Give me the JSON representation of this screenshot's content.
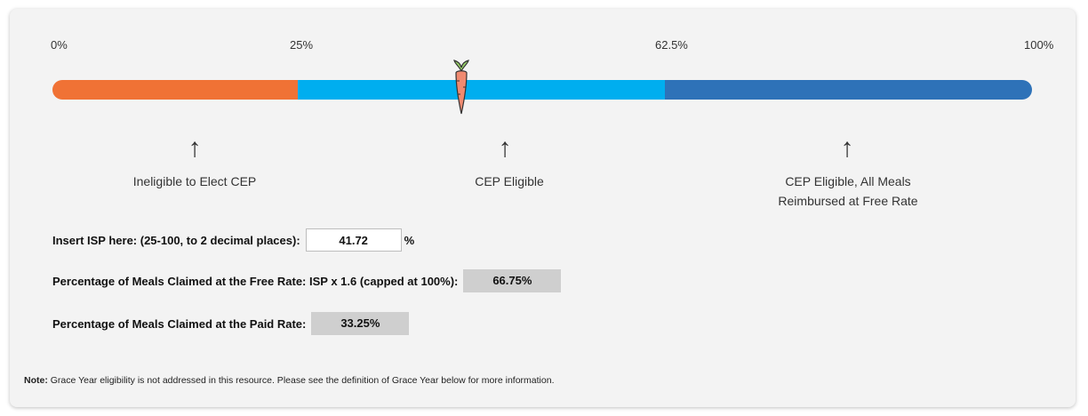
{
  "scale": {
    "ticks": [
      "0%",
      "25%",
      "62.5%",
      "100%"
    ],
    "segments": [
      {
        "from": 0,
        "to": 25,
        "color": "#f07235"
      },
      {
        "from": 25,
        "to": 62.5,
        "color": "#00aeef"
      },
      {
        "from": 62.5,
        "to": 100,
        "color": "#2e72b8"
      }
    ],
    "marker_value": 41.72,
    "categories": [
      {
        "label": "Ineligible to Elect CEP",
        "position": 14.5
      },
      {
        "label": "CEP Eligible",
        "position": 46.5
      },
      {
        "label_line1": "CEP Eligible, All Meals",
        "label_line2": "Reimbursed at Free Rate",
        "position": 81.4
      }
    ]
  },
  "form": {
    "isp_label": "Insert ISP here: (25-100, to 2 decimal places):",
    "isp_value": "41.72",
    "isp_unit": "%",
    "free_label": "Percentage of Meals Claimed at the Free Rate: ISP x 1.6 (capped at 100%):",
    "free_value": "66.75%",
    "paid_label": "Percentage of Meals Claimed at the Paid Rate:",
    "paid_value": "33.25%"
  },
  "note": {
    "prefix": "Note:",
    "text": " Grace Year eligibility is not addressed in this resource. Please see the definition of Grace Year below for more information."
  },
  "colors": {
    "card_bg": "#f3f3f3",
    "output_bg": "#cfcfcf",
    "carrot": "#f08a70",
    "carrot_leaves": "#9ad36a"
  }
}
